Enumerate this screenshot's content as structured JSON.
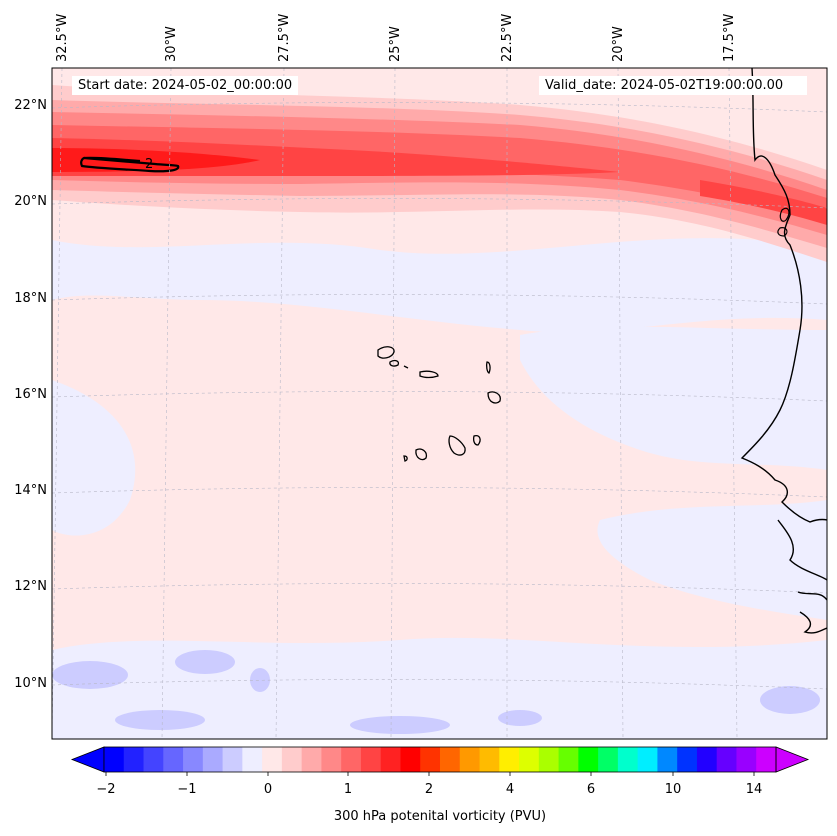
{
  "map": {
    "start_date": "Start date: 2024-05-02_00:00:00",
    "valid_date": "Valid_date: 2024-05-02T19:00:00.00",
    "contour_label": "2",
    "lon_labels": [
      "32.5°W",
      "30°W",
      "27.5°W",
      "25°W",
      "22.5°W",
      "20°W",
      "17.5°W"
    ],
    "lat_labels": [
      "22°N",
      "20°N",
      "18°N",
      "16°N",
      "14°N",
      "12°N",
      "10°N"
    ]
  },
  "colorbar": {
    "label": "300 hPa potenital vorticity (PVU)",
    "ticks": [
      "−2",
      "−1",
      "0",
      "1",
      "2",
      "4",
      "6",
      "10",
      "14"
    ],
    "colors": [
      "#0000ff",
      "#2222ff",
      "#4444ff",
      "#6666ff",
      "#8888ff",
      "#aaaaff",
      "#ccccff",
      "#eeeeff",
      "#ffe8e8",
      "#ffcccc",
      "#ffaaaa",
      "#ff8888",
      "#ff6666",
      "#ff4444",
      "#ff2222",
      "#ff0000",
      "#ff3300",
      "#ff6600",
      "#ff9900",
      "#ffbb00",
      "#ffee00",
      "#ddff00",
      "#aaff00",
      "#66ff00",
      "#00ff00",
      "#00ff66",
      "#00ffcc",
      "#00eeff",
      "#0088ff",
      "#0033ff",
      "#2200ff",
      "#6600ff",
      "#9900ff",
      "#cc00ff"
    ],
    "under_color": "#0000ff",
    "over_color": "#cc00ff"
  }
}
